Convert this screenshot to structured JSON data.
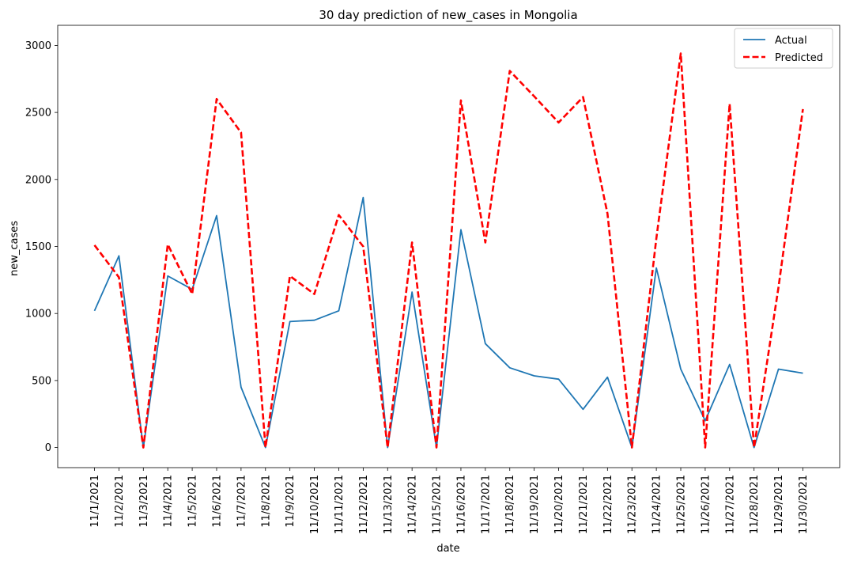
{
  "chart_data": {
    "type": "line",
    "title": "30 day prediction of new_cases in Mongolia",
    "xlabel": "date",
    "ylabel": "new_cases",
    "categories": [
      "11/1/2021",
      "11/2/2021",
      "11/3/2021",
      "11/4/2021",
      "11/5/2021",
      "11/6/2021",
      "11/7/2021",
      "11/8/2021",
      "11/9/2021",
      "11/10/2021",
      "11/11/2021",
      "11/12/2021",
      "11/13/2021",
      "11/14/2021",
      "11/15/2021",
      "11/16/2021",
      "11/17/2021",
      "11/18/2021",
      "11/19/2021",
      "11/20/2021",
      "11/21/2021",
      "11/22/2021",
      "11/23/2021",
      "11/24/2021",
      "11/25/2021",
      "11/26/2021",
      "11/27/2021",
      "11/28/2021",
      "11/29/2021",
      "11/30/2021"
    ],
    "yticks": [
      0,
      500,
      1000,
      1500,
      2000,
      2500,
      3000
    ],
    "ylim": [
      -150,
      3150
    ],
    "legend_position": "top-right",
    "grid": false,
    "series": [
      {
        "name": "Actual",
        "color": "#1f77b4",
        "style": "solid",
        "values": [
          1020,
          1430,
          0,
          1280,
          1180,
          1730,
          450,
          0,
          940,
          950,
          1020,
          1865,
          0,
          1160,
          0,
          1625,
          775,
          595,
          535,
          510,
          285,
          525,
          0,
          1340,
          585,
          200,
          620,
          0,
          585,
          555
        ]
      },
      {
        "name": "Predicted",
        "color": "#ff0000",
        "style": "dashed",
        "values": [
          1510,
          1270,
          0,
          1515,
          1145,
          2600,
          2350,
          0,
          1280,
          1145,
          1735,
          1500,
          0,
          1530,
          0,
          2590,
          1530,
          2810,
          2620,
          2425,
          2615,
          1745,
          0,
          1560,
          2940,
          0,
          2565,
          0,
          1195,
          2525
        ]
      }
    ]
  }
}
